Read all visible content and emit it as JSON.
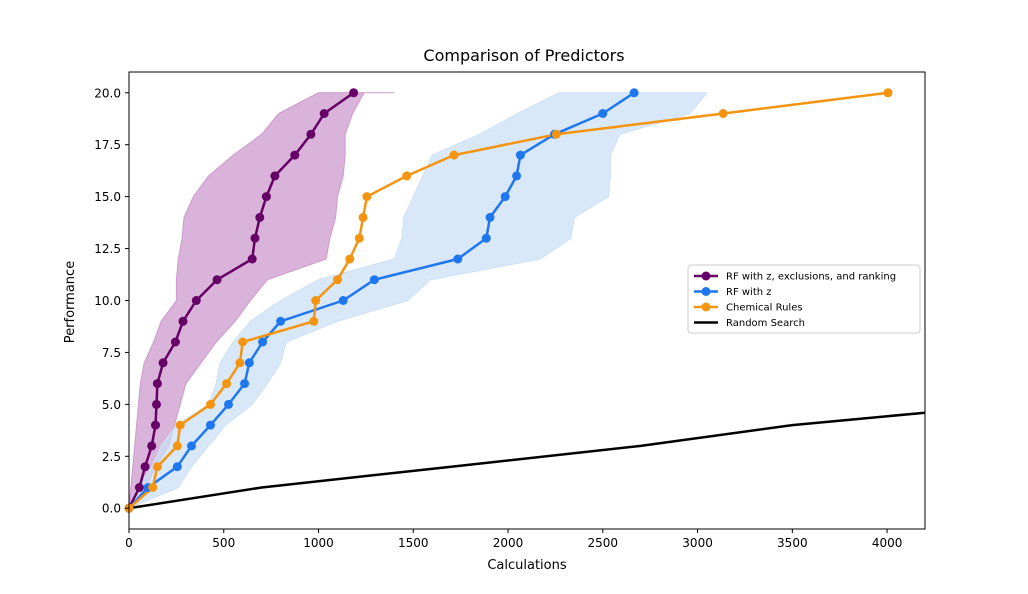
{
  "chart_data": {
    "type": "line",
    "title": "Comparison of Predictors",
    "xlabel": "Calculations",
    "ylabel": "Performance",
    "xlim": [
      0,
      4200
    ],
    "ylim": [
      -1,
      21
    ],
    "xticks": [
      0,
      500,
      1000,
      1500,
      2000,
      2500,
      3000,
      3500,
      4000
    ],
    "xtick_labels": [
      "0",
      "500",
      "1000",
      "1500",
      "2000",
      "2500",
      "3000",
      "3500",
      "4000"
    ],
    "yticks": [
      0,
      2.5,
      5,
      7.5,
      10,
      12.5,
      15,
      17.5,
      20
    ],
    "ytick_labels": [
      "0.0",
      "2.5",
      "5.0",
      "7.5",
      "10.0",
      "12.5",
      "15.0",
      "17.5",
      "20.0"
    ],
    "grid": false,
    "legend_position": "center-right",
    "series": [
      {
        "name": "RF with z, exclusions, and ranking",
        "color": "#660066",
        "marker": true,
        "x": [
          0,
          55,
          85,
          120,
          140,
          145,
          150,
          180,
          245,
          285,
          355,
          465,
          650,
          665,
          690,
          725,
          770,
          875,
          960,
          1030,
          1185
        ],
        "y": [
          0,
          1,
          2,
          3,
          4,
          5,
          6,
          7,
          8,
          9,
          10,
          11,
          12,
          13,
          14,
          15,
          16,
          17,
          18,
          19,
          20
        ],
        "band": {
          "color": "#cc99cc",
          "upper": [
            [
              0,
              0
            ],
            [
              10,
              1
            ],
            [
              20,
              2
            ],
            [
              30,
              3
            ],
            [
              40,
              4
            ],
            [
              50,
              5
            ],
            [
              60,
              6
            ],
            [
              80,
              7
            ],
            [
              130,
              8
            ],
            [
              170,
              9
            ],
            [
              250,
              10
            ],
            [
              250,
              11
            ],
            [
              260,
              12
            ],
            [
              280,
              13
            ],
            [
              290,
              14
            ],
            [
              340,
              15
            ],
            [
              420,
              16
            ],
            [
              550,
              17
            ],
            [
              700,
              18
            ],
            [
              790,
              19
            ],
            [
              1000,
              20
            ],
            [
              1400,
              20
            ]
          ],
          "lower": [
            [
              1240,
              20
            ],
            [
              1180,
              19
            ],
            [
              1140,
              18
            ],
            [
              1140,
              17
            ],
            [
              1130,
              16
            ],
            [
              1100,
              15
            ],
            [
              1090,
              14
            ],
            [
              1060,
              13
            ],
            [
              1040,
              12
            ],
            [
              730,
              11
            ],
            [
              640,
              10
            ],
            [
              560,
              9
            ],
            [
              460,
              8
            ],
            [
              380,
              7
            ],
            [
              300,
              6
            ],
            [
              270,
              5
            ],
            [
              240,
              4
            ],
            [
              210,
              3
            ],
            [
              140,
              2
            ],
            [
              90,
              1
            ],
            [
              0,
              0
            ]
          ]
        }
      },
      {
        "name": "RF with z",
        "color": "#1f77f0",
        "marker": true,
        "x": [
          0,
          100,
          255,
          330,
          430,
          525,
          610,
          635,
          705,
          800,
          1130,
          1295,
          1735,
          1885,
          1905,
          1985,
          2045,
          2065,
          2245,
          2500,
          2665
        ],
        "y": [
          0,
          1,
          2,
          3,
          4,
          5,
          6,
          7,
          8,
          9,
          10,
          11,
          12,
          13,
          14,
          15,
          16,
          17,
          18,
          19,
          20
        ],
        "band": {
          "color": "#cce0f5",
          "upper": [
            [
              0,
              0
            ],
            [
              50,
              1
            ],
            [
              120,
              2
            ],
            [
              170,
              3
            ],
            [
              250,
              4
            ],
            [
              420,
              5
            ],
            [
              460,
              6
            ],
            [
              480,
              7
            ],
            [
              550,
              8
            ],
            [
              640,
              9
            ],
            [
              800,
              10
            ],
            [
              1000,
              11
            ],
            [
              1400,
              12
            ],
            [
              1440,
              13
            ],
            [
              1450,
              14
            ],
            [
              1500,
              15
            ],
            [
              1550,
              16
            ],
            [
              1600,
              17
            ],
            [
              1850,
              18
            ],
            [
              2050,
              19
            ],
            [
              2270,
              20
            ],
            [
              3050,
              20
            ]
          ],
          "lower": [
            [
              2960,
              19
            ],
            [
              2590,
              18
            ],
            [
              2540,
              17
            ],
            [
              2540,
              16
            ],
            [
              2530,
              15
            ],
            [
              2350,
              14
            ],
            [
              2330,
              13
            ],
            [
              2170,
              12
            ],
            [
              1590,
              11
            ],
            [
              1470,
              10
            ],
            [
              1100,
              9
            ],
            [
              830,
              8
            ],
            [
              800,
              7
            ],
            [
              730,
              6
            ],
            [
              650,
              5
            ],
            [
              510,
              4
            ],
            [
              420,
              3
            ],
            [
              330,
              2
            ],
            [
              260,
              1
            ],
            [
              0,
              0
            ]
          ]
        }
      },
      {
        "name": "Chemical Rules",
        "color": "#f59410",
        "marker": true,
        "x": [
          0,
          125,
          150,
          255,
          270,
          430,
          515,
          585,
          600,
          975,
          985,
          1100,
          1165,
          1215,
          1235,
          1255,
          1465,
          1715,
          2255,
          3135,
          4005
        ],
        "y": [
          0,
          1,
          2,
          3,
          4,
          5,
          6,
          7,
          8,
          9,
          10,
          11,
          12,
          13,
          14,
          15,
          16,
          17,
          18,
          19,
          20
        ]
      },
      {
        "name": "Random Search",
        "color": "#000000",
        "marker": false,
        "x": [
          0,
          700,
          1700,
          2700,
          3500,
          4200
        ],
        "y": [
          0,
          1,
          2,
          3,
          4,
          4.6
        ]
      }
    ]
  }
}
